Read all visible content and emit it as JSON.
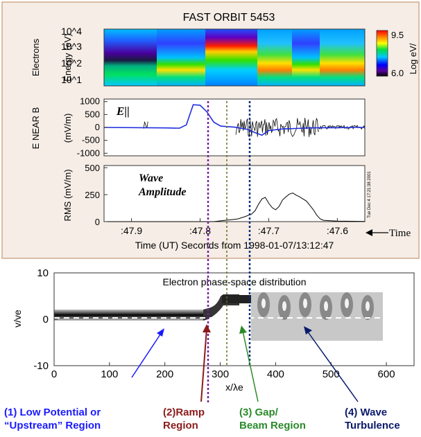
{
  "colors": {
    "top_panel_bg": "#f5ede6",
    "border": "#d0a98a",
    "efield_trace": "#1f2de0",
    "efield_noise": "#000000",
    "line_purple": "#7a1fa0",
    "line_olive": "#6b6b1a",
    "line_navy": "#0a2a7a",
    "annot_1": "#1a1aff",
    "annot_2": "#8b1a1a",
    "annot_3": "#2a8a2a",
    "annot_4": "#0a1a6a"
  },
  "header": {
    "title": "FAST ORBIT 5453"
  },
  "stamp": "Tue Dec 4 17:21:38 2001",
  "time_arrow_label": "Time",
  "axis_time_label": "Time (UT) Seconds from 1998-01-07/13:12:47",
  "panel_labels": {
    "electrons": "Electrons",
    "enearb": "E NEAR B"
  },
  "chart_data": [
    {
      "type": "heatmap",
      "name": "electron-spectrogram",
      "ylabel": "Energy (eV)",
      "yticks": [
        "10^4",
        "10^3",
        "10^2",
        "10^1"
      ],
      "ylim_log": [
        0.7,
        4.2
      ],
      "colorbar": {
        "label": "Log eV/",
        "min": 6.0,
        "max": 9.5,
        "ticks": [
          "9.5",
          "6.0"
        ]
      }
    },
    {
      "type": "line",
      "name": "e-parallel",
      "ylabel": "(mV/m)",
      "annotation": "E||",
      "yticks": [
        "1000",
        "500",
        "0",
        "-500",
        "-1000"
      ],
      "ylim": [
        -1100,
        1100
      ],
      "xlim": [
        47.94,
        47.56
      ],
      "series": [
        {
          "x": [
            47.94,
            47.85,
            47.83,
            47.82,
            47.815,
            47.81,
            47.8,
            47.79,
            47.78,
            47.77,
            47.75,
            47.73,
            47.72,
            47.71,
            47.7,
            47.68,
            47.66,
            47.64,
            47.62,
            47.6,
            47.58,
            47.56
          ],
          "y": [
            0,
            -20,
            -30,
            100,
            500,
            880,
            860,
            600,
            200,
            50,
            10,
            -80,
            -200,
            -300,
            -120,
            -60,
            -40,
            -20,
            -10,
            -10,
            0,
            0
          ]
        }
      ]
    },
    {
      "type": "line",
      "name": "rms-wave-amplitude",
      "ylabel": "RMS (mV/m)",
      "annotation": "Wave Amplitude",
      "yticks": [
        "500",
        "250",
        "0"
      ],
      "ylim": [
        0,
        520
      ],
      "xlim": [
        47.94,
        47.56
      ],
      "xticks": [
        {
          "label": ":47.9",
          "value": 47.9
        },
        {
          "label": ":47.8",
          "value": 47.8
        },
        {
          "label": ":47.7",
          "value": 47.7
        },
        {
          "label": ":47.6",
          "value": 47.6
        }
      ],
      "series": [
        {
          "x": [
            47.94,
            47.78,
            47.76,
            47.745,
            47.735,
            47.725,
            47.72,
            47.715,
            47.71,
            47.705,
            47.7,
            47.695,
            47.69,
            47.685,
            47.68,
            47.675,
            47.67,
            47.665,
            47.66,
            47.655,
            47.65,
            47.645,
            47.64,
            47.635,
            47.63,
            47.625,
            47.62,
            47.61,
            47.6,
            47.56
          ],
          "y": [
            0,
            0,
            15,
            25,
            45,
            70,
            100,
            160,
            210,
            225,
            170,
            130,
            110,
            140,
            200,
            230,
            255,
            265,
            245,
            230,
            210,
            190,
            150,
            110,
            60,
            25,
            12,
            8,
            5,
            2
          ]
        }
      ]
    },
    {
      "type": "heatmap",
      "name": "phase-space",
      "title": "Electron phase-space distribution",
      "xlabel": "x/λe",
      "ylabel": "v/ve",
      "xlim": [
        0,
        650
      ],
      "ylim": [
        -10,
        10
      ],
      "xticks": [
        "0",
        "100",
        "200",
        "300",
        "400",
        "500",
        "600"
      ],
      "yticks": [
        "10",
        "0",
        "-10"
      ]
    }
  ],
  "annotations": [
    {
      "line1": "(1) Low Potential or",
      "line2": "“Upstream” Region"
    },
    {
      "line1": "(2)Ramp",
      "line2": "Region"
    },
    {
      "line1": "(3) Gap/",
      "line2": "Beam Region"
    },
    {
      "line1": "(4) Wave",
      "line2": "Turbulence"
    }
  ]
}
